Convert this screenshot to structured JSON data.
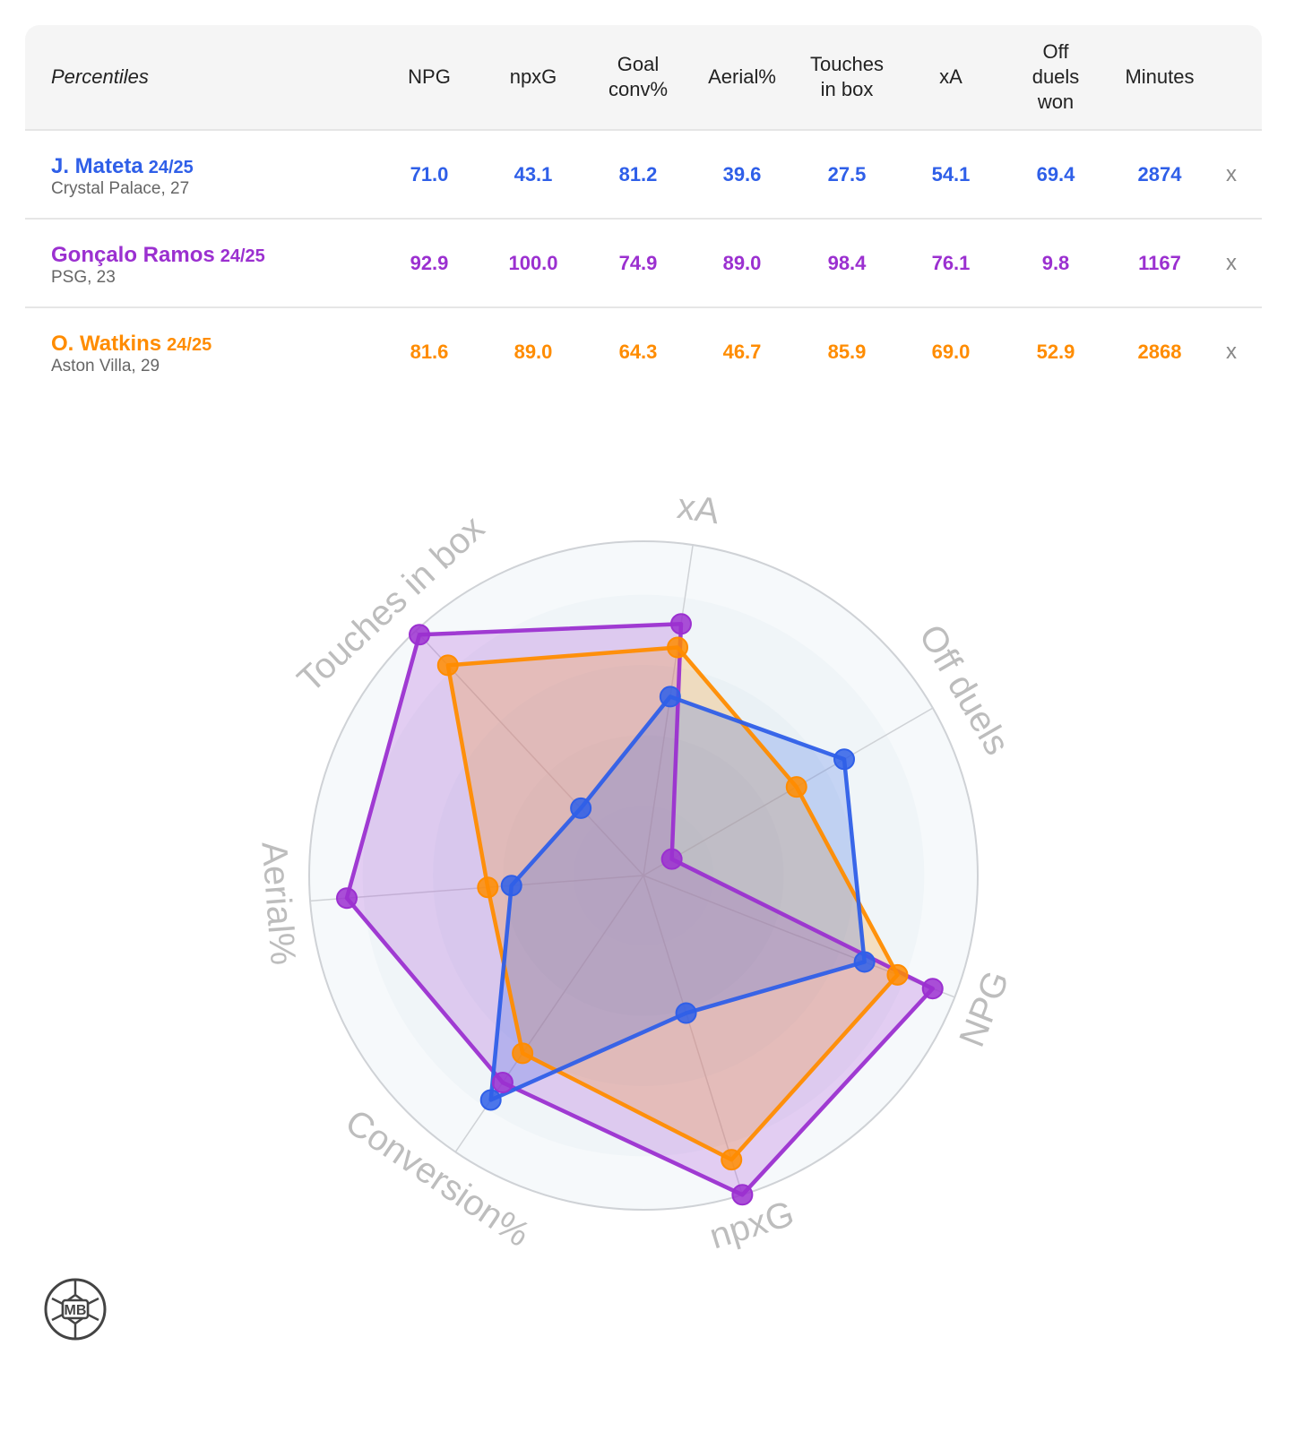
{
  "table": {
    "header_label": "Percentiles",
    "columns": [
      "NPG",
      "npxG",
      "Goal\nconv%",
      "Aerial%",
      "Touches\nin box",
      "xA",
      "Off\nduels\nwon",
      "Minutes"
    ],
    "remove_label": "x",
    "players": [
      {
        "name": "J. Mateta",
        "season": "24/25",
        "meta": "Crystal Palace, 27",
        "color": "#2f5fe8",
        "values": [
          "71.0",
          "43.1",
          "81.2",
          "39.6",
          "27.5",
          "54.1",
          "69.4",
          "2874"
        ]
      },
      {
        "name": "Gonçalo Ramos",
        "season": "24/25",
        "meta": "PSG, 23",
        "color": "#9b30d0",
        "values": [
          "92.9",
          "100.0",
          "74.9",
          "89.0",
          "98.4",
          "76.1",
          "9.8",
          "1167"
        ]
      },
      {
        "name": "O. Watkins",
        "season": "24/25",
        "meta": "Aston Villa, 29",
        "color": "#ff8c00",
        "values": [
          "81.6",
          "89.0",
          "64.3",
          "46.7",
          "85.9",
          "69.0",
          "52.9",
          "2868"
        ]
      }
    ]
  },
  "chart_data": {
    "type": "radar",
    "axes": [
      "xA",
      "Off duels",
      "NPG",
      "npxG",
      "Conversion%",
      "Aerial%",
      "Touches in box"
    ],
    "rmax": 100,
    "series": [
      {
        "name": "J. Mateta",
        "color": "#2f5fe8",
        "values": [
          54.1,
          69.4,
          71.0,
          43.1,
          81.2,
          39.6,
          27.5
        ]
      },
      {
        "name": "Gonçalo Ramos",
        "color": "#9b30d0",
        "values": [
          76.1,
          9.8,
          92.9,
          100.0,
          74.9,
          89.0,
          98.4
        ]
      },
      {
        "name": "O. Watkins",
        "color": "#ff8c00",
        "values": [
          69.0,
          52.9,
          81.6,
          89.0,
          64.3,
          46.7,
          85.9
        ]
      }
    ]
  },
  "logo": {
    "text": "MB"
  }
}
